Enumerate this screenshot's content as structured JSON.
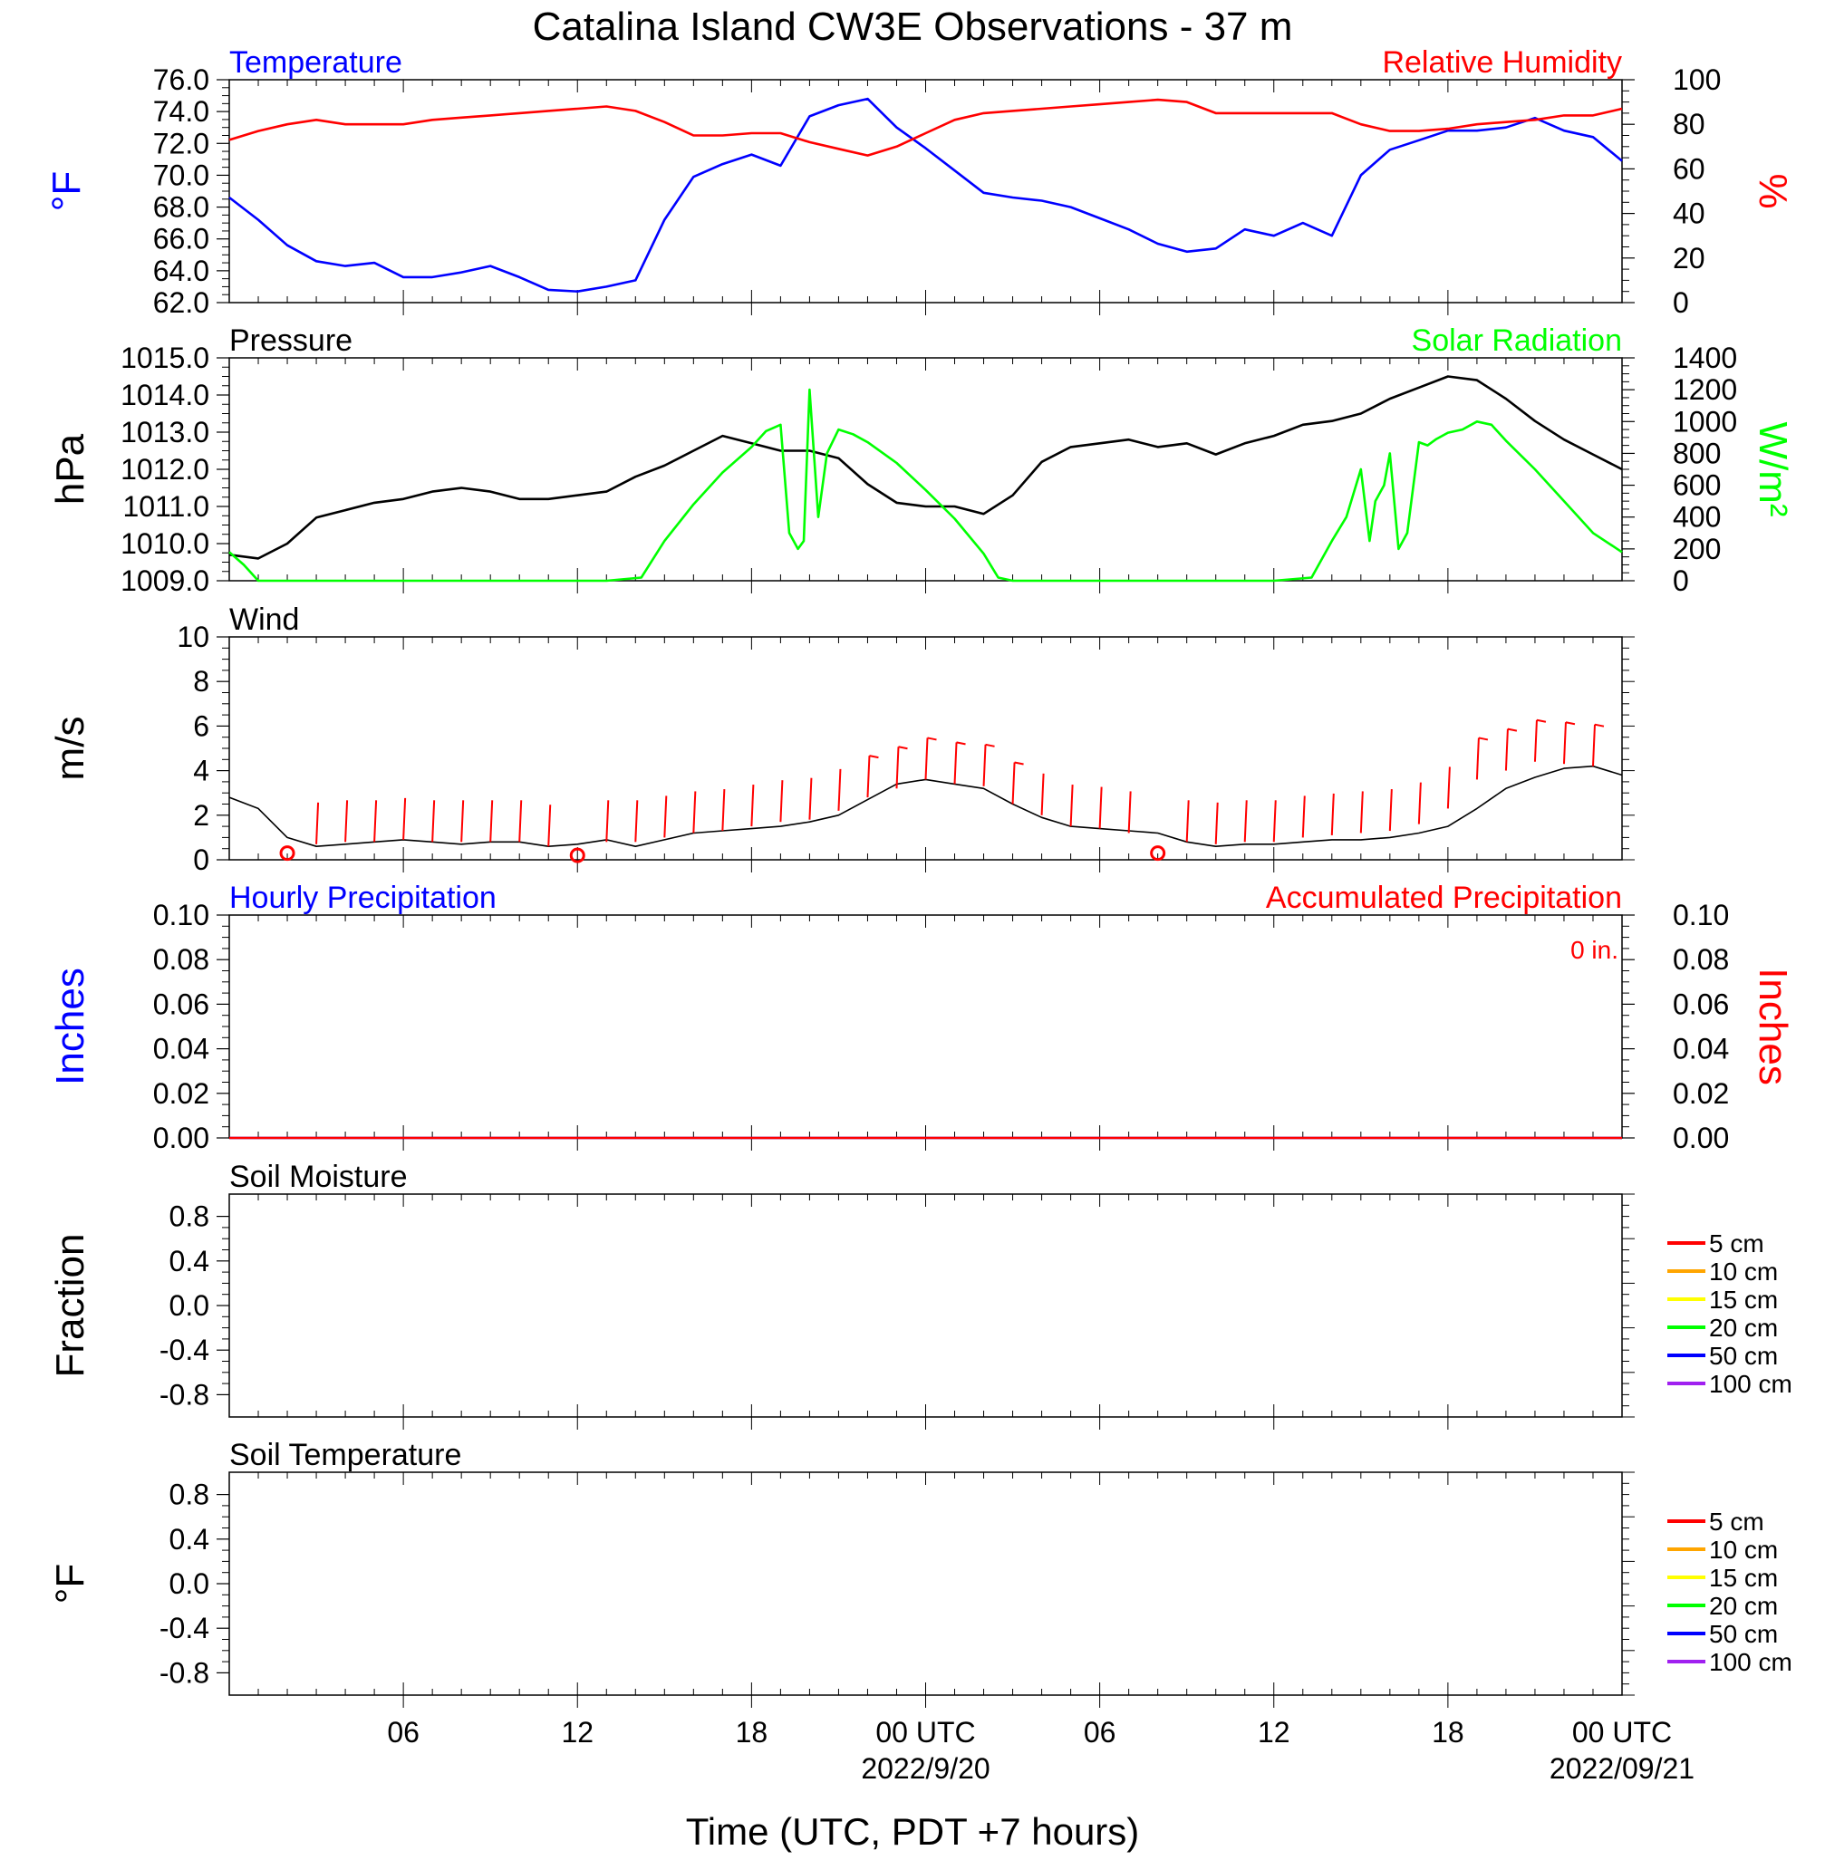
{
  "title": "Catalina Island CW3E Observations - 37 m",
  "xlabel": "Time (UTC, PDT +7 hours)",
  "x_ticks": [
    {
      "hour": 6,
      "label": "06"
    },
    {
      "hour": 12,
      "label": "12"
    },
    {
      "hour": 18,
      "label": "18"
    },
    {
      "hour": 24,
      "label": "00 UTC",
      "date": "2022/9/20"
    },
    {
      "hour": 30,
      "label": "06"
    },
    {
      "hour": 36,
      "label": "12"
    },
    {
      "hour": 42,
      "label": "18"
    },
    {
      "hour": 48,
      "label": "00 UTC",
      "date": "2022/09/21"
    }
  ],
  "chart_data": [
    {
      "type": "line",
      "panel": "temperature-humidity",
      "left_title": "Temperature",
      "right_title": "Relative Humidity",
      "ylabel_left": "°F",
      "ylabel_right": "%",
      "ylim_left": [
        62,
        76
      ],
      "yticks_left": [
        "62.0",
        "64.0",
        "66.0",
        "68.0",
        "70.0",
        "72.0",
        "74.0",
        "76.0"
      ],
      "ylim_right": [
        0,
        100
      ],
      "yticks_right": [
        "0",
        "20",
        "40",
        "60",
        "80",
        "100"
      ],
      "x_unit": "hours since 2022-09-19 00 UTC",
      "series": [
        {
          "name": "Temperature",
          "axis": "left",
          "color": "#0000ff",
          "x": [
            0,
            1,
            2,
            3,
            4,
            5,
            6,
            7,
            8,
            9,
            10,
            11,
            12,
            13,
            14,
            15,
            16,
            17,
            18,
            19,
            20,
            21,
            22,
            23,
            24,
            25,
            26,
            27,
            28,
            29,
            30,
            31,
            32,
            33,
            34,
            35,
            36,
            37,
            38,
            39,
            40,
            41,
            42,
            43,
            44,
            45,
            46,
            47,
            48
          ],
          "values": [
            68.6,
            67.2,
            65.6,
            64.6,
            64.3,
            64.5,
            63.6,
            63.6,
            63.9,
            64.3,
            63.6,
            62.8,
            62.7,
            63.0,
            63.4,
            67.2,
            69.9,
            70.7,
            71.3,
            70.6,
            73.7,
            74.4,
            74.8,
            73.0,
            71.7,
            70.3,
            68.9,
            68.6,
            68.4,
            68.0,
            67.3,
            66.6,
            65.7,
            65.2,
            65.4,
            66.6,
            66.2,
            67.0,
            66.2,
            70.0,
            71.6,
            72.2,
            72.8,
            72.8,
            73.0,
            73.6,
            72.8,
            72.4,
            70.9
          ]
        },
        {
          "name": "Relative Humidity",
          "axis": "right",
          "color": "#ff0000",
          "x": [
            0,
            1,
            2,
            3,
            4,
            5,
            6,
            7,
            8,
            9,
            10,
            11,
            12,
            13,
            14,
            15,
            16,
            17,
            18,
            19,
            20,
            21,
            22,
            23,
            24,
            25,
            26,
            27,
            28,
            29,
            30,
            31,
            32,
            33,
            34,
            35,
            36,
            37,
            38,
            39,
            40,
            41,
            42,
            43,
            44,
            45,
            46,
            47,
            48
          ],
          "values": [
            73,
            77,
            80,
            82,
            80,
            80,
            80,
            82,
            83,
            84,
            85,
            86,
            87,
            88,
            86,
            81,
            75,
            75,
            76,
            76,
            72,
            69,
            66,
            70,
            76,
            82,
            85,
            86,
            87,
            88,
            89,
            90,
            91,
            90,
            85,
            85,
            85,
            85,
            85,
            80,
            77,
            77,
            78,
            80,
            81,
            82,
            84,
            84,
            87
          ]
        }
      ]
    },
    {
      "type": "line",
      "panel": "pressure-solar",
      "left_title": "Pressure",
      "right_title": "Solar Radiation",
      "ylabel_left": "hPa",
      "ylabel_right": "W/m²",
      "ylim_left": [
        1009,
        1015
      ],
      "yticks_left": [
        "1009.0",
        "1010.0",
        "1011.0",
        "1012.0",
        "1013.0",
        "1014.0",
        "1015.0"
      ],
      "ylim_right": [
        0,
        1400
      ],
      "yticks_right": [
        "0",
        "200",
        "400",
        "600",
        "800",
        "1000",
        "1200",
        "1400"
      ],
      "x_unit": "hours since 2022-09-19 00 UTC",
      "series": [
        {
          "name": "Pressure",
          "axis": "left",
          "color": "#000000",
          "x": [
            0,
            1,
            2,
            3,
            4,
            5,
            6,
            7,
            8,
            9,
            10,
            11,
            12,
            13,
            14,
            15,
            16,
            17,
            18,
            19,
            20,
            21,
            22,
            23,
            24,
            25,
            26,
            27,
            28,
            29,
            30,
            31,
            32,
            33,
            34,
            35,
            36,
            37,
            38,
            39,
            40,
            41,
            42,
            43,
            44,
            45,
            46,
            47,
            48
          ],
          "values": [
            1009.7,
            1009.6,
            1010.0,
            1010.7,
            1010.9,
            1011.1,
            1011.2,
            1011.4,
            1011.5,
            1011.4,
            1011.2,
            1011.2,
            1011.3,
            1011.4,
            1011.8,
            1012.1,
            1012.5,
            1012.9,
            1012.7,
            1012.5,
            1012.5,
            1012.3,
            1011.6,
            1011.1,
            1011.0,
            1011.0,
            1010.8,
            1011.3,
            1012.2,
            1012.6,
            1012.7,
            1012.8,
            1012.6,
            1012.7,
            1012.4,
            1012.7,
            1012.9,
            1013.2,
            1013.3,
            1013.5,
            1013.9,
            1014.2,
            1014.5,
            1014.4,
            1013.9,
            1013.3,
            1012.8,
            1012.4,
            1012.0
          ]
        },
        {
          "name": "Solar Radiation",
          "axis": "right",
          "color": "#00ff00",
          "x": [
            0,
            0.5,
            1,
            1.5,
            13,
            14.2,
            15,
            16,
            17,
            18,
            18.5,
            19,
            19.3,
            19.6,
            19.8,
            20,
            20.3,
            20.6,
            21,
            21.5,
            22,
            23,
            24,
            25,
            26,
            26.5,
            27,
            36,
            37.3,
            38,
            38.5,
            39,
            39.3,
            39.5,
            39.8,
            40,
            40.3,
            40.6,
            41,
            41.3,
            41.6,
            42,
            42.5,
            43,
            43.5,
            44,
            45,
            46,
            47,
            48
          ],
          "values": [
            180,
            100,
            0,
            0,
            0,
            20,
            250,
            480,
            680,
            840,
            940,
            980,
            300,
            200,
            250,
            1200,
            400,
            800,
            950,
            920,
            870,
            740,
            570,
            390,
            170,
            20,
            0,
            0,
            20,
            250,
            400,
            700,
            250,
            500,
            600,
            800,
            200,
            300,
            870,
            850,
            890,
            930,
            950,
            1000,
            980,
            880,
            700,
            500,
            300,
            180
          ]
        }
      ]
    },
    {
      "type": "line",
      "panel": "wind",
      "left_title": "Wind",
      "ylabel_left": "m/s",
      "ylim_left": [
        0,
        10
      ],
      "yticks_left": [
        "0",
        "2",
        "4",
        "6",
        "8",
        "10"
      ],
      "x_unit": "hours since 2022-09-19 00 UTC",
      "series": [
        {
          "name": "Wind speed",
          "axis": "left",
          "color": "#000000",
          "x": [
            0,
            1,
            2,
            3,
            4,
            5,
            6,
            7,
            8,
            9,
            10,
            11,
            12,
            13,
            14,
            15,
            16,
            17,
            18,
            19,
            20,
            21,
            22,
            23,
            24,
            25,
            26,
            27,
            28,
            29,
            30,
            31,
            32,
            33,
            34,
            35,
            36,
            37,
            38,
            39,
            40,
            41,
            42,
            43,
            44,
            45,
            46,
            47,
            48
          ],
          "values": [
            2.8,
            2.3,
            1.0,
            0.6,
            0.7,
            0.8,
            0.9,
            0.8,
            0.7,
            0.8,
            0.8,
            0.6,
            0.7,
            0.9,
            0.6,
            0.9,
            1.2,
            1.3,
            1.4,
            1.5,
            1.7,
            2.0,
            2.7,
            3.4,
            3.6,
            3.4,
            3.2,
            2.5,
            1.9,
            1.5,
            1.4,
            1.3,
            1.2,
            0.8,
            0.6,
            0.7,
            0.7,
            0.8,
            0.9,
            0.9,
            1.0,
            1.2,
            1.5,
            2.3,
            3.2,
            3.7,
            4.1,
            4.2,
            3.8
          ]
        },
        {
          "name": "Wind barbs",
          "axis": "left",
          "color": "#ff0000",
          "x": [
            2,
            3,
            4,
            5,
            6,
            7,
            8,
            9,
            10,
            11,
            12,
            13,
            14,
            15,
            16,
            17,
            18,
            19,
            20,
            21,
            22,
            23,
            24,
            25,
            26,
            27,
            28,
            29,
            30,
            31,
            32,
            33,
            34,
            35,
            36,
            37,
            38,
            39,
            40,
            41,
            42,
            43,
            44,
            45,
            46,
            47
          ],
          "values": [
            0.3,
            0.7,
            0.8,
            0.8,
            0.9,
            0.8,
            0.8,
            0.8,
            0.8,
            0.6,
            0.2,
            0.8,
            0.8,
            1.0,
            1.2,
            1.3,
            1.5,
            1.7,
            1.8,
            2.2,
            2.8,
            3.2,
            3.6,
            3.4,
            3.3,
            2.5,
            2.0,
            1.5,
            1.4,
            1.2,
            0.3,
            0.8,
            0.7,
            0.8,
            0.8,
            1.0,
            1.1,
            1.2,
            1.3,
            1.6,
            2.3,
            3.6,
            4.0,
            4.4,
            4.3,
            4.2
          ]
        }
      ]
    },
    {
      "type": "line",
      "panel": "precipitation",
      "left_title": "Hourly Precipitation",
      "right_title": "Accumulated Precipitation",
      "annotation": "0 in.",
      "ylabel_left": "Inches",
      "ylabel_right": "Inches",
      "ylim_left": [
        0,
        0.1
      ],
      "yticks_left": [
        "0.00",
        "0.02",
        "0.04",
        "0.06",
        "0.08",
        "0.10"
      ],
      "ylim_right": [
        0,
        0.1
      ],
      "yticks_right": [
        "0.00",
        "0.02",
        "0.04",
        "0.06",
        "0.08",
        "0.10"
      ],
      "x_unit": "hours since 2022-09-19 00 UTC",
      "series": [
        {
          "name": "Hourly Precipitation",
          "axis": "left",
          "color": "#0000ff",
          "x": [
            0,
            48
          ],
          "values": [
            0,
            0
          ]
        },
        {
          "name": "Accumulated Precipitation",
          "axis": "right",
          "color": "#ff0000",
          "x": [
            0,
            48
          ],
          "values": [
            0,
            0
          ]
        }
      ]
    },
    {
      "type": "line",
      "panel": "soil-moisture",
      "left_title": "Soil Moisture",
      "ylabel_left": "Fraction",
      "ylim_left": [
        -1,
        1
      ],
      "yticks_left": [
        "-0.8",
        "-0.4",
        "0.0",
        "0.4",
        "0.8"
      ],
      "legend": [
        {
          "label": "5 cm",
          "color": "#ff0000"
        },
        {
          "label": "10 cm",
          "color": "#ffa500"
        },
        {
          "label": "15 cm",
          "color": "#ffff00"
        },
        {
          "label": "20 cm",
          "color": "#00ff00"
        },
        {
          "label": "50 cm",
          "color": "#0000ff"
        },
        {
          "label": "100 cm",
          "color": "#a020f0"
        }
      ],
      "series": []
    },
    {
      "type": "line",
      "panel": "soil-temperature",
      "left_title": "Soil Temperature",
      "ylabel_left": "°F",
      "ylim_left": [
        -1,
        1
      ],
      "yticks_left": [
        "-0.8",
        "-0.4",
        "0.0",
        "0.4",
        "0.8"
      ],
      "legend": [
        {
          "label": "5 cm",
          "color": "#ff0000"
        },
        {
          "label": "10 cm",
          "color": "#ffa500"
        },
        {
          "label": "15 cm",
          "color": "#ffff00"
        },
        {
          "label": "20 cm",
          "color": "#00ff00"
        },
        {
          "label": "50 cm",
          "color": "#0000ff"
        },
        {
          "label": "100 cm",
          "color": "#a020f0"
        }
      ],
      "series": []
    }
  ]
}
